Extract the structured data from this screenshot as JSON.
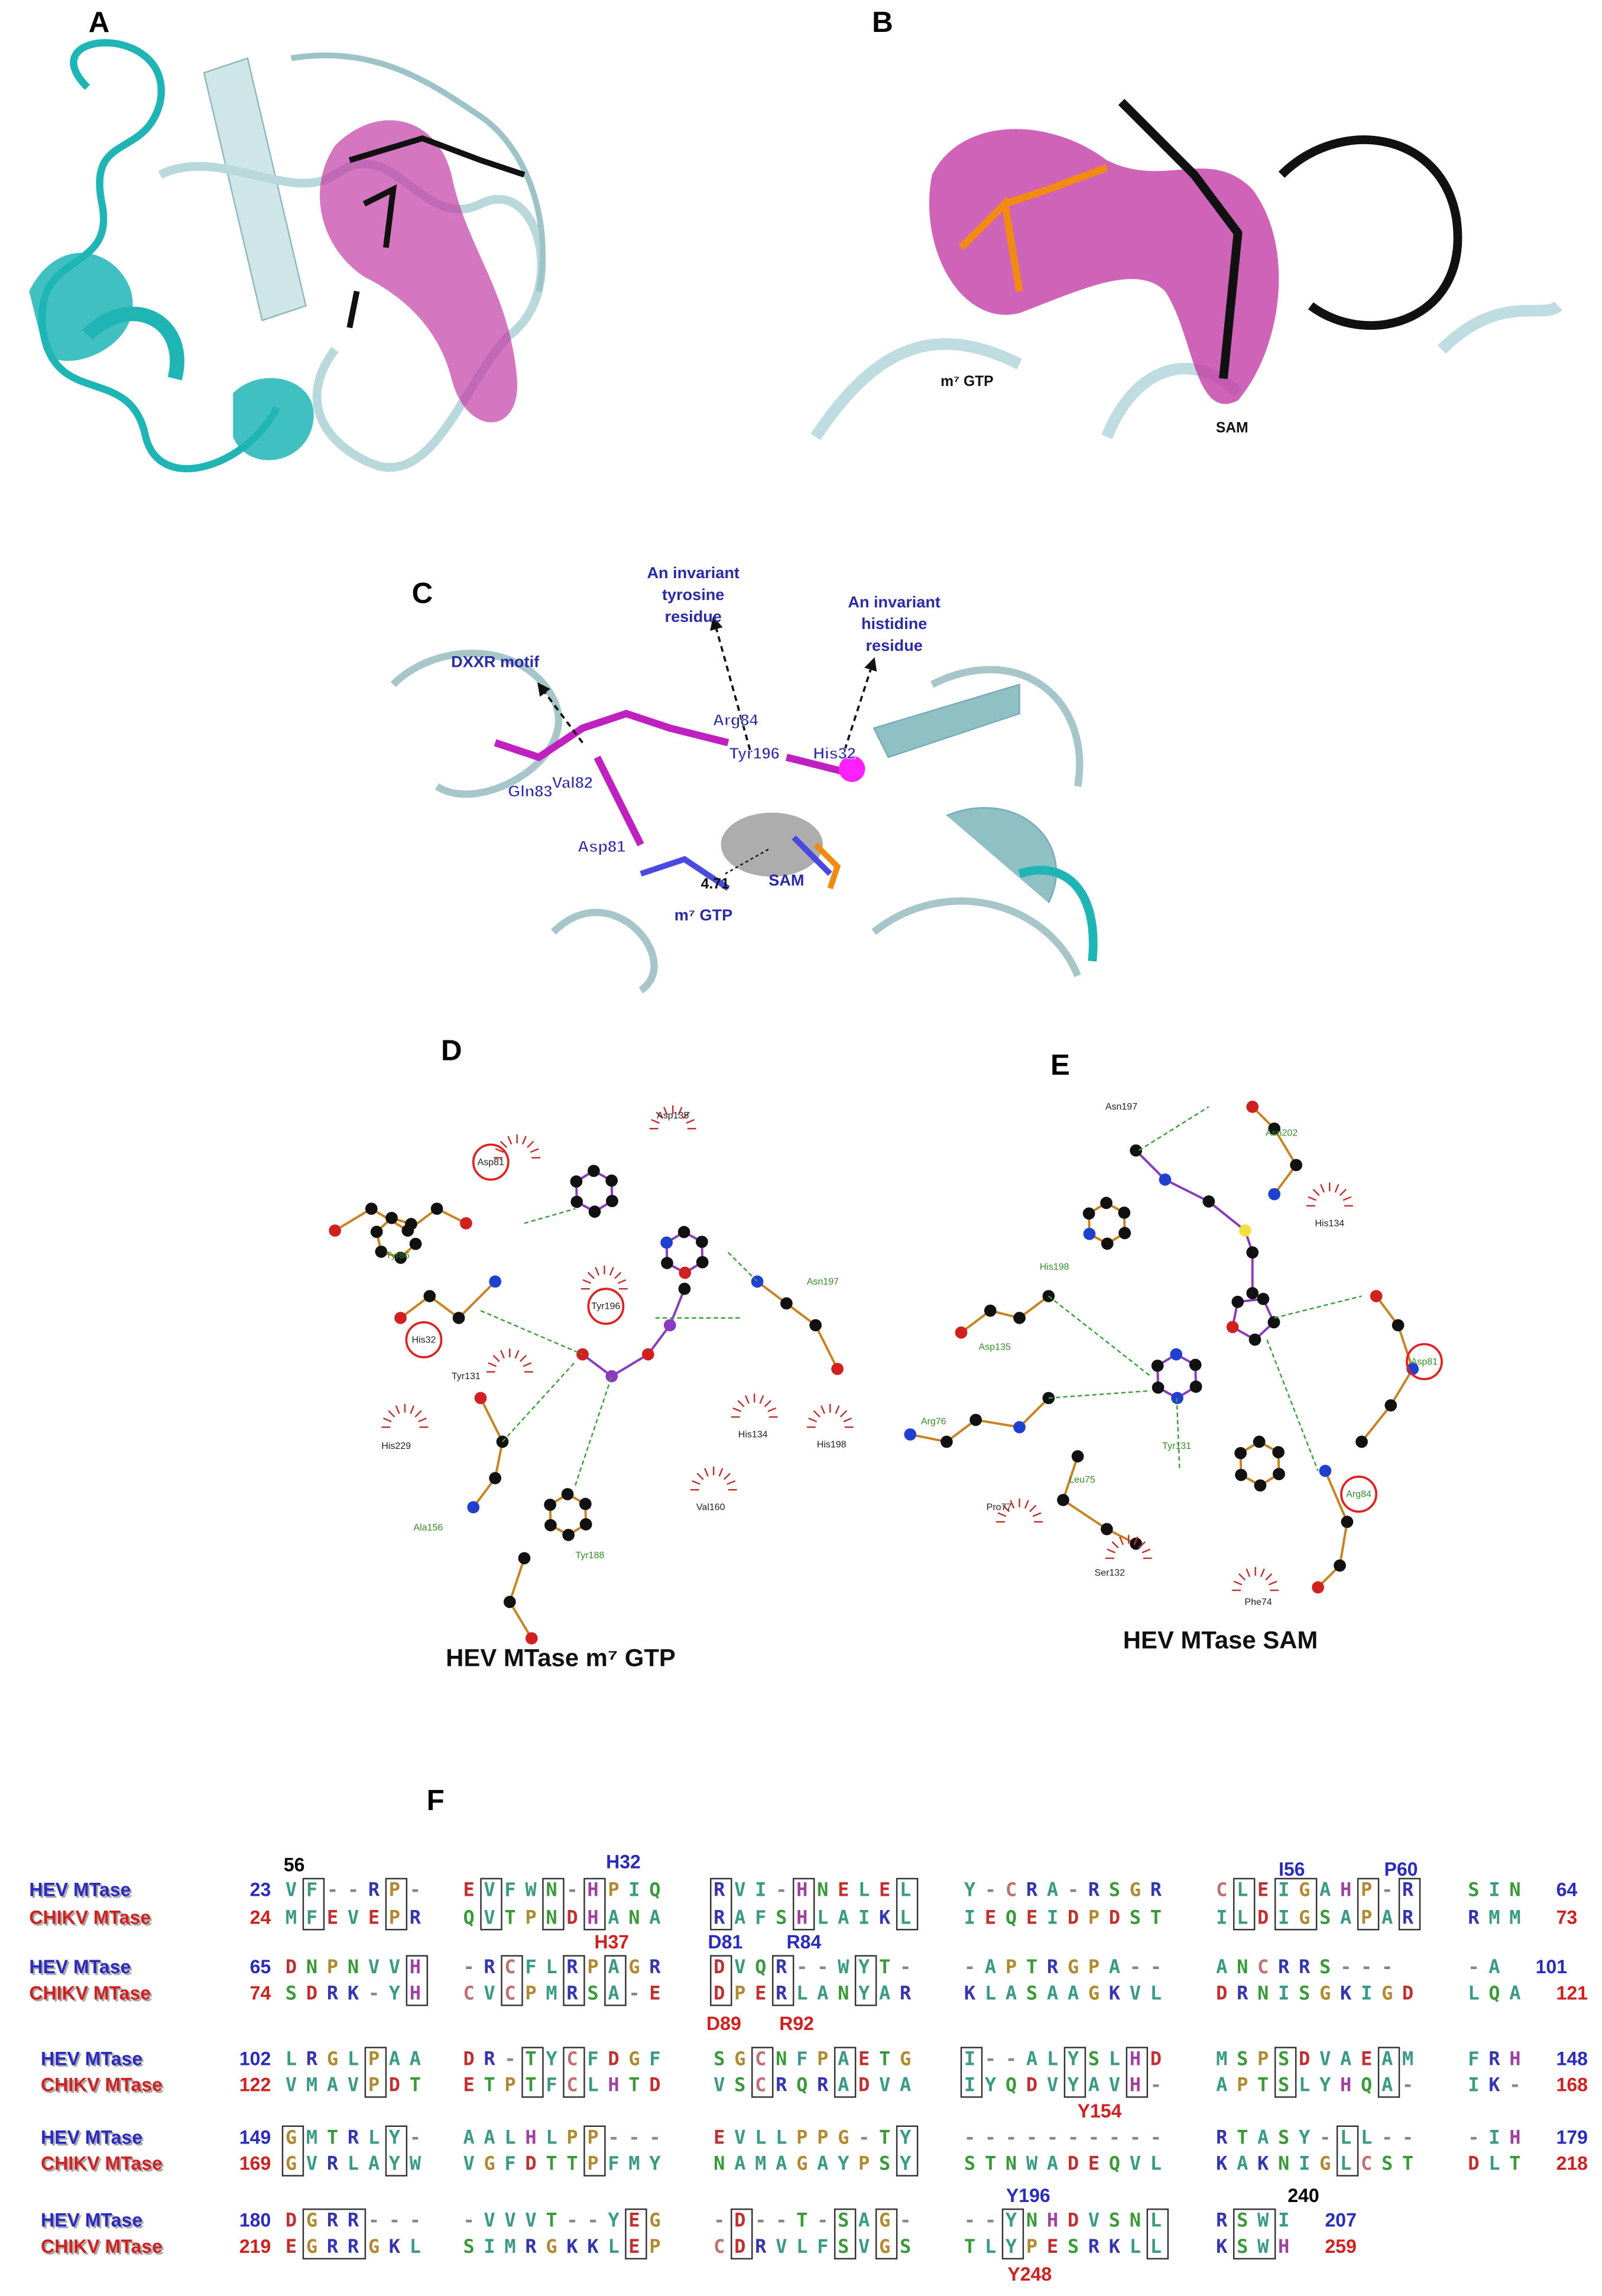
{
  "panel_labels": [
    "A",
    "B",
    "C",
    "D",
    "E",
    "F"
  ],
  "panel_b": {
    "ligand_labels": [
      "m⁷ GTP",
      "SAM"
    ]
  },
  "panel_c": {
    "callouts": [
      [
        "DXXR motif"
      ],
      [
        "An invariant",
        "tyrosine",
        "residue"
      ],
      [
        "An invariant",
        "histidine",
        "residue"
      ]
    ],
    "residues": [
      "Arg84",
      "Tyr196",
      "His32",
      "Gln83",
      "Val82",
      "Asp81"
    ],
    "ligands": [
      "SAM",
      "m⁷ GTP"
    ],
    "distance": "4.71"
  },
  "panel_d": {
    "caption": "HEV MTase m⁷ GTP",
    "residues": [
      {
        "name": "Asp135",
        "color": "#222222"
      },
      {
        "name": "Asp81",
        "color": "#222222",
        "circled": true
      },
      {
        "name": "Tyr86",
        "color": "#3a8a2a"
      },
      {
        "name": "Asn197",
        "color": "#3a8a2a"
      },
      {
        "name": "Tyr196",
        "color": "#222222",
        "circled": true
      },
      {
        "name": "His32",
        "color": "#222222",
        "circled": true
      },
      {
        "name": "Tyr131",
        "color": "#222222"
      },
      {
        "name": "His229",
        "color": "#222222"
      },
      {
        "name": "His134",
        "color": "#222222"
      },
      {
        "name": "His198",
        "color": "#222222"
      },
      {
        "name": "Val160",
        "color": "#222222"
      },
      {
        "name": "Ala156",
        "color": "#3a8a2a"
      },
      {
        "name": "Tyr188",
        "color": "#3a8a2a"
      }
    ]
  },
  "panel_e": {
    "caption": "HEV MTase SAM",
    "residues": [
      {
        "name": "Asn197",
        "color": "#222222"
      },
      {
        "name": "Asn202",
        "color": "#3a8a2a"
      },
      {
        "name": "His134",
        "color": "#222222"
      },
      {
        "name": "His198",
        "color": "#3a8a2a"
      },
      {
        "name": "Asp135",
        "color": "#3a8a2a"
      },
      {
        "name": "Asp81",
        "color": "#3a8a2a",
        "circled": true
      },
      {
        "name": "Arg76",
        "color": "#3a8a2a"
      },
      {
        "name": "Tyr131",
        "color": "#3a8a2a"
      },
      {
        "name": "Leu75",
        "color": "#3a8a2a"
      },
      {
        "name": "Pro77",
        "color": "#222222"
      },
      {
        "name": "Arg84",
        "color": "#3a8a2a",
        "circled": true
      },
      {
        "name": "Ser132",
        "color": "#222222"
      },
      {
        "name": "Phe74",
        "color": "#222222"
      }
    ]
  },
  "panel_f": {
    "blocks": [
      {
        "hev": {
          "name": "HEV MTase",
          "start": 23,
          "segments": [
            "VF--RP-",
            "EVFWN-HPIQ",
            "RVI-HNELEL",
            "Y-CRA-RSGR",
            "CLEIGAHP-R",
            "SIN"
          ],
          "end": 64
        },
        "chikv": {
          "name": "CHIKV MTase",
          "start": 24,
          "segments": [
            "MFEVEPR",
            "QVTPNDHANA",
            "RAFSHLAIKL",
            "IEQEIDPDST",
            "ILDIGSAPAR",
            "RMM"
          ],
          "end": 73
        },
        "annotations": [
          {
            "text": "56",
            "color": "#000000"
          },
          {
            "text": "H32",
            "color": "#2a2ac0"
          },
          {
            "text": "I56",
            "color": "#2a2ac0"
          },
          {
            "text": "P60",
            "color": "#2a2ac0"
          }
        ]
      },
      {
        "hev": {
          "name": "HEV MTase",
          "start": 65,
          "segments": [
            "DNPNVVH",
            "-RCFLRPAGR",
            "DVQR--WYT-",
            "-APTRGPA--",
            "ANCRRS---",
            "-A"
          ],
          "end": 101
        },
        "chikv": {
          "name": "CHIKV MTase",
          "start": 74,
          "segments": [
            "SDRK-YH",
            "CVCPMRSA-E",
            "DPERLANYAR",
            "KLASAAGKVL",
            "DRNISGKIGD",
            "LQA"
          ],
          "end": 121
        },
        "annotations": [
          {
            "text": "H37",
            "color": "#d02020"
          },
          {
            "text": "D81",
            "color": "#2a2ac0"
          },
          {
            "text": "R84",
            "color": "#2a2ac0"
          },
          {
            "text": "D89",
            "color": "#d02020"
          },
          {
            "text": "R92",
            "color": "#d02020"
          }
        ]
      },
      {
        "hev": {
          "name": "HEV MTase",
          "start": 102,
          "segments": [
            "LRGLPAA",
            "DR-TYCFDGF",
            "SGCNFPAETG",
            "I--ALYSLHD",
            "MSPSDVAEAM",
            "FRH"
          ],
          "end": 148
        },
        "chikv": {
          "name": "CHIKV MTase",
          "start": 122,
          "segments": [
            "VMAVPDT",
            "ETPTFCLHTD",
            "VSCRQRADVA",
            "IYQDVYAVH-",
            "APTSLYHQA-",
            "IK-"
          ],
          "end": 168
        },
        "annotations": [
          {
            "text": "Y154",
            "color": "#d02020"
          }
        ]
      },
      {
        "hev": {
          "name": "HEV MTase",
          "start": 149,
          "segments": [
            "GMTRLY-",
            "AALHLPP---",
            "EVLLPPG-TY",
            "----------",
            "RTASY-LL--",
            "-IH"
          ],
          "end": 179
        },
        "chikv": {
          "name": "CHIKV MTase",
          "start": 169,
          "segments": [
            "GVRLAYW",
            "VGFDTTPFMY",
            "NAMAGAYPSY",
            "STNWADEQVL",
            "KAKNIGLCST",
            "DLT"
          ],
          "end": 218
        },
        "annotations": []
      },
      {
        "hev": {
          "name": "HEV MTase",
          "start": 180,
          "segments": [
            "DGRR---",
            "-VVVT--YEG",
            "-D--T-SAG-",
            "--YNHDVSNL",
            "RSWI"
          ],
          "end": 207
        },
        "chikv": {
          "name": "CHIKV MTase",
          "start": 219,
          "segments": [
            "EGRRGKL",
            "SIMRGKKLEP",
            "CDRVLFSVGS",
            "TLYPESRKLL",
            "KSWH"
          ],
          "end": 259
        },
        "annotations": [
          {
            "text": "Y196",
            "color": "#2a2ac0"
          },
          {
            "text": "240",
            "color": "#000000"
          },
          {
            "text": "Y248",
            "color": "#d02020"
          }
        ]
      }
    ]
  }
}
